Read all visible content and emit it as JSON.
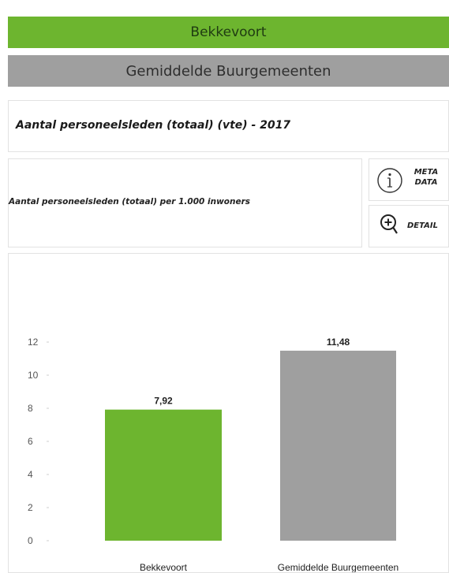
{
  "header": {
    "municipality": "Bekkevoort",
    "comparison": "Gemiddelde Buurgemeenten"
  },
  "indicator": {
    "title": "Aantal personeelsleden (totaal) (vte) - 2017",
    "subtitle": "Aantal personeelsleden (totaal) per 1.000 inwoners"
  },
  "buttons": {
    "meta_label": "META DATA",
    "detail_label": "DETAIL"
  },
  "icons": {
    "meta": "info-icon",
    "detail": "zoom-in-icon"
  },
  "colors": {
    "green": "#6db52f",
    "grey": "#9f9f9f"
  },
  "chart_data": {
    "type": "bar",
    "categories": [
      "Bekkevoort",
      "Gemiddelde Buurgemeenten"
    ],
    "values": [
      7.92,
      11.48
    ],
    "value_labels": [
      "7,92",
      "11,48"
    ],
    "bar_colors": [
      "#6db52f",
      "#9f9f9f"
    ],
    "ylim": [
      0,
      12
    ],
    "yticks": [
      0,
      2,
      4,
      6,
      8,
      10,
      12
    ],
    "grid": false,
    "legend": "none"
  }
}
